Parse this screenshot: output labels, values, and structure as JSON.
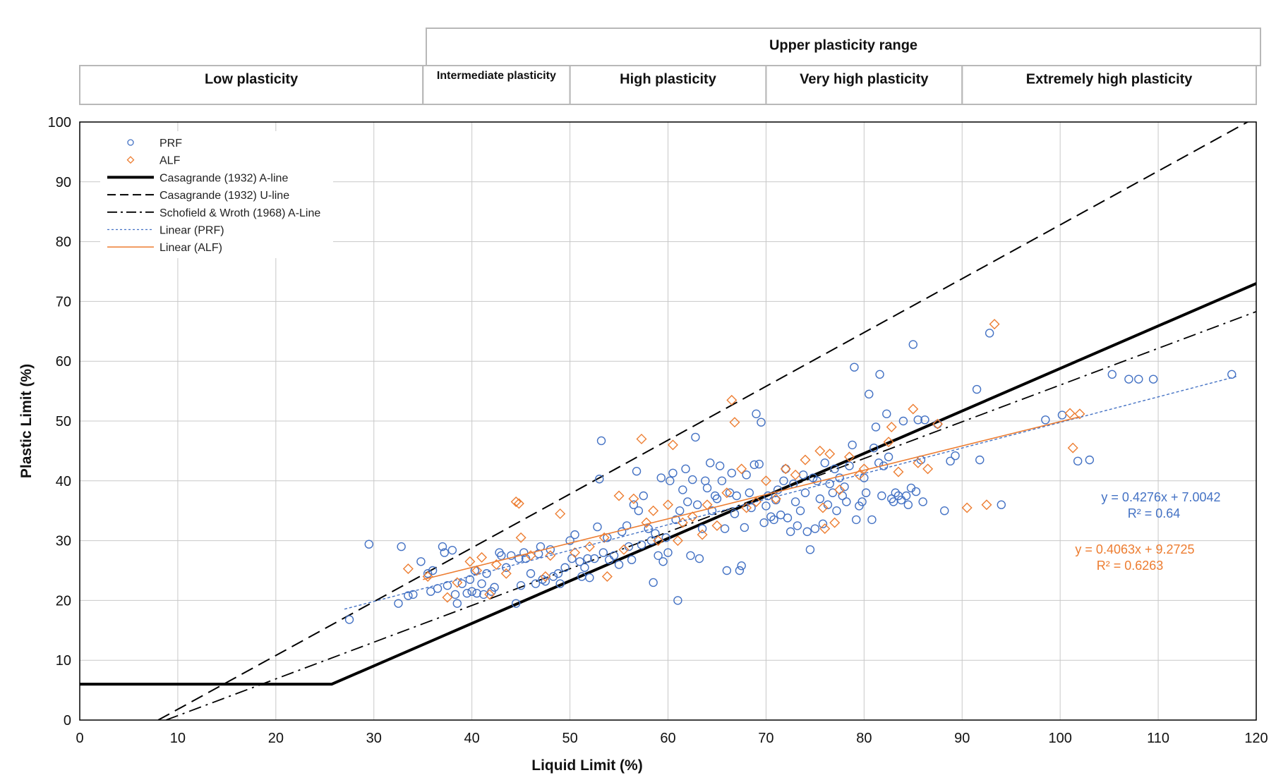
{
  "chart_data": {
    "type": "scatter",
    "title": "",
    "xlabel": "Liquid Limit (%)",
    "ylabel": "Plastic Limit (%)",
    "xlim": [
      0,
      120
    ],
    "ylim": [
      0,
      100
    ],
    "x_ticks": [
      0,
      10,
      20,
      30,
      40,
      50,
      60,
      70,
      80,
      90,
      100,
      110,
      120
    ],
    "y_ticks": [
      0,
      10,
      20,
      30,
      40,
      50,
      60,
      70,
      80,
      90,
      100
    ],
    "grid": true,
    "legend_position": "top-left",
    "colors": {
      "PRF": "#4472c4",
      "ALF": "#ed7d31",
      "lines": "#000000"
    },
    "plasticity_ranges": {
      "upper_label": "Upper plasticity range",
      "upper_from": 35,
      "upper_to": 120,
      "bands": [
        {
          "label": "Low plasticity",
          "from": 0,
          "to": 35
        },
        {
          "label": "Intermediate plasticity",
          "from": 35,
          "to": 50
        },
        {
          "label": "High plasticity",
          "from": 50,
          "to": 70
        },
        {
          "label": "Very high plasticity",
          "from": 70,
          "to": 90
        },
        {
          "label": "Extremely high plasticity",
          "from": 90,
          "to": 120
        }
      ]
    },
    "reference_lines": [
      {
        "name": "Casagrande (1932) A-line",
        "style": "solid-thick",
        "points": [
          [
            0,
            6
          ],
          [
            25.7,
            6
          ],
          [
            120,
            73
          ]
        ]
      },
      {
        "name": "Casagrande (1932) U-line",
        "style": "dashed",
        "points": [
          [
            8,
            0
          ],
          [
            120,
            100.8
          ]
        ]
      },
      {
        "name": "Schofield & Wroth (1968) A-Line",
        "style": "dashdot",
        "points": [
          [
            8.8,
            0
          ],
          [
            120,
            68.3
          ]
        ]
      }
    ],
    "trendlines": [
      {
        "name": "Linear (PRF)",
        "series": "PRF",
        "slope": 0.4276,
        "intercept": 7.0042,
        "x_range": [
          27,
          118
        ],
        "equation": "y = 0.4276x + 7.0042",
        "r2": "R² = 0.64"
      },
      {
        "name": "Linear (ALF)",
        "series": "ALF",
        "slope": 0.4063,
        "intercept": 9.2725,
        "x_range": [
          35,
          102
        ],
        "equation": "y = 0.4063x + 9.2725",
        "r2": "R² = 0.6263"
      }
    ],
    "series": [
      {
        "name": "PRF",
        "marker": "circle",
        "points": [
          [
            27.5,
            16.8
          ],
          [
            29.5,
            29.4
          ],
          [
            32.5,
            19.5
          ],
          [
            32.8,
            29.0
          ],
          [
            33.5,
            20.8
          ],
          [
            34.0,
            21.0
          ],
          [
            34.8,
            26.5
          ],
          [
            35.5,
            24.5
          ],
          [
            35.8,
            21.5
          ],
          [
            36.0,
            25.0
          ],
          [
            36.5,
            22.0
          ],
          [
            37.0,
            29.0
          ],
          [
            37.2,
            28.0
          ],
          [
            37.5,
            22.5
          ],
          [
            38.0,
            28.4
          ],
          [
            38.3,
            21.0
          ],
          [
            38.5,
            19.5
          ],
          [
            39.0,
            22.8
          ],
          [
            39.5,
            21.2
          ],
          [
            39.8,
            23.5
          ],
          [
            40.0,
            21.5
          ],
          [
            40.3,
            25.0
          ],
          [
            40.5,
            21.2
          ],
          [
            41.0,
            22.8
          ],
          [
            41.2,
            21.0
          ],
          [
            41.5,
            24.5
          ],
          [
            42.0,
            21.5
          ],
          [
            42.3,
            22.2
          ],
          [
            42.8,
            28.0
          ],
          [
            43.0,
            27.5
          ],
          [
            43.5,
            25.5
          ],
          [
            44.0,
            27.5
          ],
          [
            44.5,
            19.5
          ],
          [
            44.8,
            27.0
          ],
          [
            45.0,
            22.5
          ],
          [
            45.3,
            28.0
          ],
          [
            45.5,
            27.0
          ],
          [
            46.0,
            24.5
          ],
          [
            46.5,
            22.8
          ],
          [
            46.8,
            27.8
          ],
          [
            47.0,
            29.0
          ],
          [
            47.2,
            23.5
          ],
          [
            47.5,
            23.2
          ],
          [
            48.0,
            28.5
          ],
          [
            48.3,
            24.0
          ],
          [
            48.8,
            24.5
          ],
          [
            49.0,
            22.8
          ],
          [
            49.5,
            25.5
          ],
          [
            50.0,
            30.0
          ],
          [
            50.2,
            27.0
          ],
          [
            50.5,
            31.0
          ],
          [
            51.0,
            26.5
          ],
          [
            51.2,
            24.0
          ],
          [
            51.5,
            25.5
          ],
          [
            51.8,
            27.0
          ],
          [
            52.0,
            23.8
          ],
          [
            52.5,
            27.0
          ],
          [
            52.8,
            32.3
          ],
          [
            53.0,
            40.3
          ],
          [
            53.2,
            46.7
          ],
          [
            53.4,
            28.0
          ],
          [
            53.8,
            30.5
          ],
          [
            54.0,
            26.8
          ],
          [
            54.5,
            27.5
          ],
          [
            55.0,
            26.0
          ],
          [
            55.3,
            31.5
          ],
          [
            55.8,
            32.5
          ],
          [
            56.0,
            29.0
          ],
          [
            56.3,
            26.8
          ],
          [
            56.5,
            36.0
          ],
          [
            56.8,
            41.6
          ],
          [
            57.0,
            35.0
          ],
          [
            57.3,
            29.3
          ],
          [
            57.5,
            37.5
          ],
          [
            58.0,
            32.0
          ],
          [
            58.3,
            30.0
          ],
          [
            58.5,
            23.0
          ],
          [
            58.7,
            31.2
          ],
          [
            59.0,
            27.5
          ],
          [
            59.3,
            40.5
          ],
          [
            59.5,
            26.5
          ],
          [
            59.8,
            30.5
          ],
          [
            60.0,
            28.0
          ],
          [
            60.2,
            40.0
          ],
          [
            60.5,
            41.3
          ],
          [
            60.8,
            33.5
          ],
          [
            61.0,
            20.0
          ],
          [
            61.2,
            35.0
          ],
          [
            61.5,
            38.5
          ],
          [
            61.8,
            42.0
          ],
          [
            62.0,
            36.5
          ],
          [
            62.3,
            27.5
          ],
          [
            62.5,
            40.2
          ],
          [
            62.8,
            47.3
          ],
          [
            63.0,
            36.0
          ],
          [
            63.2,
            27.0
          ],
          [
            63.5,
            32.0
          ],
          [
            63.8,
            40.0
          ],
          [
            64.0,
            38.8
          ],
          [
            64.3,
            43.0
          ],
          [
            64.5,
            35.0
          ],
          [
            64.8,
            37.5
          ],
          [
            65.0,
            37.0
          ],
          [
            65.3,
            42.5
          ],
          [
            65.5,
            40.0
          ],
          [
            65.8,
            32.0
          ],
          [
            66.0,
            25.0
          ],
          [
            66.3,
            38.0
          ],
          [
            66.5,
            41.3
          ],
          [
            66.8,
            34.5
          ],
          [
            67.0,
            37.5
          ],
          [
            67.3,
            25.0
          ],
          [
            67.5,
            25.8
          ],
          [
            67.8,
            32.2
          ],
          [
            68.0,
            41.0
          ],
          [
            68.3,
            38.0
          ],
          [
            68.5,
            35.5
          ],
          [
            68.8,
            42.7
          ],
          [
            69.0,
            51.2
          ],
          [
            69.3,
            42.8
          ],
          [
            69.5,
            49.8
          ],
          [
            69.8,
            33.0
          ],
          [
            70.0,
            35.8
          ],
          [
            70.2,
            37.5
          ],
          [
            70.5,
            34.0
          ],
          [
            70.8,
            33.5
          ],
          [
            71.0,
            36.8
          ],
          [
            71.2,
            38.5
          ],
          [
            71.5,
            34.3
          ],
          [
            71.8,
            40.0
          ],
          [
            72.0,
            42.0
          ],
          [
            72.2,
            33.8
          ],
          [
            72.5,
            31.5
          ],
          [
            72.8,
            39.5
          ],
          [
            73.0,
            36.5
          ],
          [
            73.2,
            32.5
          ],
          [
            73.5,
            35.0
          ],
          [
            73.8,
            41.0
          ],
          [
            74.0,
            38.0
          ],
          [
            74.2,
            31.5
          ],
          [
            74.5,
            28.5
          ],
          [
            74.8,
            40.5
          ],
          [
            75.0,
            32.0
          ],
          [
            75.2,
            40.0
          ],
          [
            75.5,
            37.0
          ],
          [
            75.8,
            32.8
          ],
          [
            76.0,
            43.0
          ],
          [
            76.3,
            36.0
          ],
          [
            76.5,
            39.5
          ],
          [
            76.8,
            38.0
          ],
          [
            77.0,
            42.0
          ],
          [
            77.2,
            35.0
          ],
          [
            77.5,
            40.5
          ],
          [
            77.8,
            37.5
          ],
          [
            78.0,
            39.0
          ],
          [
            78.2,
            36.5
          ],
          [
            78.5,
            42.5
          ],
          [
            78.8,
            46.0
          ],
          [
            79.0,
            59.0
          ],
          [
            79.2,
            33.5
          ],
          [
            79.5,
            35.8
          ],
          [
            79.8,
            36.5
          ],
          [
            80.0,
            40.5
          ],
          [
            80.2,
            38.0
          ],
          [
            80.5,
            54.5
          ],
          [
            80.8,
            33.5
          ],
          [
            81.0,
            45.5
          ],
          [
            81.2,
            49.0
          ],
          [
            81.5,
            43.0
          ],
          [
            81.6,
            57.8
          ],
          [
            81.8,
            37.5
          ],
          [
            82.0,
            42.5
          ],
          [
            82.3,
            51.2
          ],
          [
            82.5,
            44.0
          ],
          [
            82.8,
            37.0
          ],
          [
            83.0,
            36.5
          ],
          [
            83.2,
            38.0
          ],
          [
            83.5,
            37.5
          ],
          [
            83.8,
            36.8
          ],
          [
            84.0,
            50.0
          ],
          [
            84.3,
            37.5
          ],
          [
            84.5,
            36.0
          ],
          [
            84.8,
            38.8
          ],
          [
            85.0,
            62.8
          ],
          [
            85.3,
            38.2
          ],
          [
            85.5,
            50.2
          ],
          [
            85.8,
            43.5
          ],
          [
            86.0,
            36.5
          ],
          [
            86.2,
            50.2
          ],
          [
            87.5,
            49.5
          ],
          [
            88.2,
            35.0
          ],
          [
            88.8,
            43.3
          ],
          [
            89.3,
            44.2
          ],
          [
            91.5,
            55.3
          ],
          [
            91.8,
            43.5
          ],
          [
            92.8,
            64.7
          ],
          [
            94.0,
            36.0
          ],
          [
            98.5,
            50.2
          ],
          [
            100.2,
            51.0
          ],
          [
            101.8,
            43.3
          ],
          [
            103.0,
            43.5
          ],
          [
            105.3,
            57.8
          ],
          [
            107.0,
            57.0
          ],
          [
            108.0,
            57.0
          ],
          [
            109.5,
            57.0
          ],
          [
            117.5,
            57.8
          ]
        ]
      },
      {
        "name": "ALF",
        "marker": "diamond",
        "points": [
          [
            33.5,
            25.3
          ],
          [
            35.5,
            24.0
          ],
          [
            37.5,
            20.5
          ],
          [
            38.5,
            23.0
          ],
          [
            39.8,
            26.5
          ],
          [
            40.5,
            25.0
          ],
          [
            41.0,
            27.2
          ],
          [
            41.8,
            21.0
          ],
          [
            42.5,
            26.0
          ],
          [
            43.5,
            24.5
          ],
          [
            44.5,
            36.5
          ],
          [
            44.8,
            36.2
          ],
          [
            45.0,
            30.5
          ],
          [
            46.0,
            27.5
          ],
          [
            47.5,
            24.0
          ],
          [
            48.0,
            27.5
          ],
          [
            49.0,
            34.5
          ],
          [
            50.5,
            28.0
          ],
          [
            52.0,
            29.0
          ],
          [
            53.5,
            30.5
          ],
          [
            53.8,
            24.0
          ],
          [
            55.0,
            37.5
          ],
          [
            55.5,
            28.5
          ],
          [
            56.5,
            37.0
          ],
          [
            57.3,
            47.0
          ],
          [
            57.8,
            33.0
          ],
          [
            58.5,
            35.0
          ],
          [
            59.0,
            30.0
          ],
          [
            60.0,
            36.0
          ],
          [
            60.5,
            46.0
          ],
          [
            61.0,
            30.0
          ],
          [
            61.5,
            33.0
          ],
          [
            62.5,
            34.0
          ],
          [
            63.5,
            31.0
          ],
          [
            64.0,
            36.0
          ],
          [
            65.0,
            32.5
          ],
          [
            66.0,
            38.0
          ],
          [
            66.5,
            53.5
          ],
          [
            66.8,
            49.8
          ],
          [
            67.5,
            42.0
          ],
          [
            68.0,
            35.5
          ],
          [
            69.0,
            36.5
          ],
          [
            70.0,
            40.0
          ],
          [
            71.0,
            37.0
          ],
          [
            72.0,
            42.0
          ],
          [
            73.0,
            41.0
          ],
          [
            74.0,
            43.5
          ],
          [
            75.5,
            45.0
          ],
          [
            75.8,
            35.5
          ],
          [
            76.0,
            32.0
          ],
          [
            76.5,
            44.5
          ],
          [
            77.0,
            33.0
          ],
          [
            77.5,
            38.5
          ],
          [
            78.5,
            44.0
          ],
          [
            79.5,
            41.0
          ],
          [
            80.0,
            42.0
          ],
          [
            82.5,
            46.5
          ],
          [
            82.8,
            49.0
          ],
          [
            83.5,
            41.5
          ],
          [
            85.0,
            52.0
          ],
          [
            85.5,
            43.0
          ],
          [
            86.5,
            42.0
          ],
          [
            87.5,
            49.5
          ],
          [
            90.5,
            35.5
          ],
          [
            92.5,
            36.0
          ],
          [
            93.3,
            66.2
          ],
          [
            101.0,
            51.3
          ],
          [
            101.3,
            45.5
          ],
          [
            102.0,
            51.2
          ]
        ]
      }
    ]
  }
}
